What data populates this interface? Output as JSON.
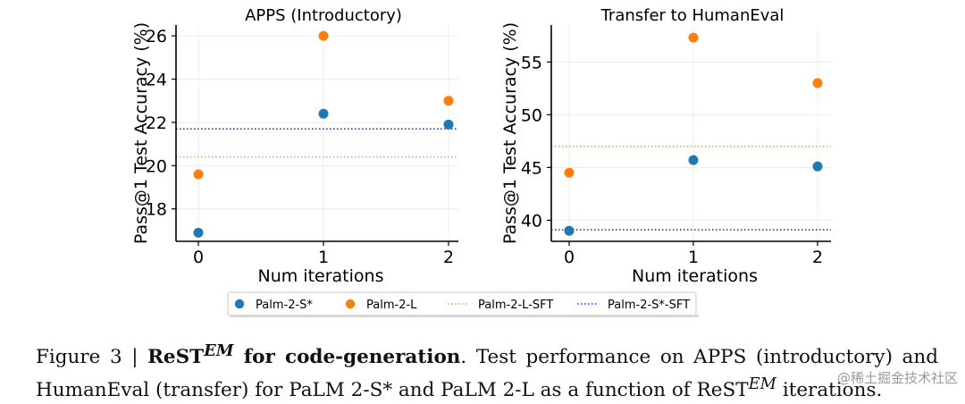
{
  "chart_data": [
    {
      "type": "scatter",
      "title": "APPS (Introductory)",
      "xlabel": "Num iterations",
      "ylabel": "Pass@1 Test Accuracy (%)",
      "x": [
        0,
        1,
        2
      ],
      "xticks": [
        "0",
        "1",
        "2"
      ],
      "yticks": [
        "18",
        "20",
        "22",
        "24",
        "26"
      ],
      "ylim": [
        16.5,
        26.5
      ],
      "series": [
        {
          "name": "Palm-2-S*",
          "color": "#1f77b4",
          "values": [
            16.9,
            22.4,
            21.9
          ]
        },
        {
          "name": "Palm-2-L",
          "color": "#ff7f0e",
          "values": [
            19.6,
            26.0,
            23.0
          ]
        }
      ],
      "baselines": [
        {
          "name": "Palm-2-L-SFT",
          "color": "#ff9f1a",
          "value": 20.4
        },
        {
          "name": "Palm-2-S*-SFT",
          "color": "#3030d0",
          "value": 21.7
        }
      ]
    },
    {
      "type": "scatter",
      "title": "Transfer to HumanEval",
      "xlabel": "Num iterations",
      "ylabel": "Pass@1 Test Accuracy (%)",
      "x": [
        0,
        1,
        2
      ],
      "xticks": [
        "0",
        "1",
        "2"
      ],
      "yticks": [
        "40",
        "45",
        "50",
        "55"
      ],
      "ylim": [
        38,
        58.5
      ],
      "series": [
        {
          "name": "Palm-2-S*",
          "color": "#1f77b4",
          "values": [
            39.0,
            45.7,
            45.1
          ]
        },
        {
          "name": "Palm-2-L",
          "color": "#ff7f0e",
          "values": [
            44.5,
            57.3,
            53.0
          ]
        }
      ],
      "baselines": [
        {
          "name": "Palm-2-L-SFT",
          "color": "#ff9f1a",
          "value": 47.0
        },
        {
          "name": "Palm-2-S*-SFT",
          "color": "#3030d0",
          "value": 39.1
        }
      ]
    }
  ],
  "legend": [
    {
      "label": "Palm-2-S*",
      "kind": "marker",
      "color": "#1f77b4"
    },
    {
      "label": "Palm-2-L",
      "kind": "marker",
      "color": "#ff7f0e"
    },
    {
      "label": "Palm-2-L-SFT",
      "kind": "line",
      "color": "#ff9f1a"
    },
    {
      "label": "Palm-2-S*-SFT",
      "kind": "line",
      "color": "#3030d0"
    }
  ],
  "caption": {
    "prefix": "Figure 3 | ",
    "bold_main": "ReST",
    "sup": "EM",
    "bold_rest": " for code-generation",
    "text1": ".  Test performance on APPS (introductory) and HumanEval (transfer) for PaLM 2-S* and PaLM 2-L as a function of ReST",
    "sup2": "EM",
    "text2": " iterations."
  },
  "watermark": "@稀土掘金技术社区"
}
